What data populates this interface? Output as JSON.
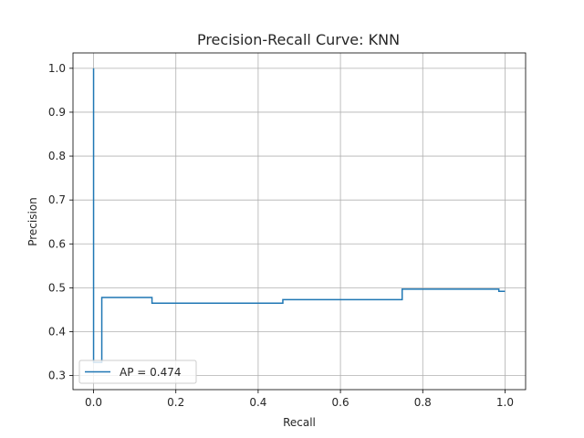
{
  "chart_data": {
    "type": "line",
    "title": "Precision-Recall Curve: KNN",
    "xlabel": "Recall",
    "ylabel": "Precision",
    "xlim": [
      -0.05,
      1.05
    ],
    "ylim": [
      0.268,
      1.035
    ],
    "xticks": [
      "0.0",
      "0.2",
      "0.4",
      "0.6",
      "0.8",
      "1.0"
    ],
    "yticks": [
      "0.3",
      "0.4",
      "0.5",
      "0.6",
      "0.7",
      "0.8",
      "0.9",
      "1.0"
    ],
    "grid": true,
    "legend_position": "lower-left",
    "series": [
      {
        "name": "AP = 0.474",
        "color": "#1f77b4",
        "drawstyle": "steps-post",
        "points": [
          [
            0.0,
            1.0
          ],
          [
            0.0,
            0.33
          ],
          [
            0.02,
            0.33
          ],
          [
            0.02,
            0.478
          ],
          [
            0.142,
            0.478
          ],
          [
            0.142,
            0.465
          ],
          [
            0.46,
            0.465
          ],
          [
            0.46,
            0.473
          ],
          [
            0.75,
            0.473
          ],
          [
            0.75,
            0.497
          ],
          [
            0.985,
            0.497
          ],
          [
            0.985,
            0.492
          ],
          [
            1.0,
            0.492
          ]
        ]
      }
    ]
  }
}
